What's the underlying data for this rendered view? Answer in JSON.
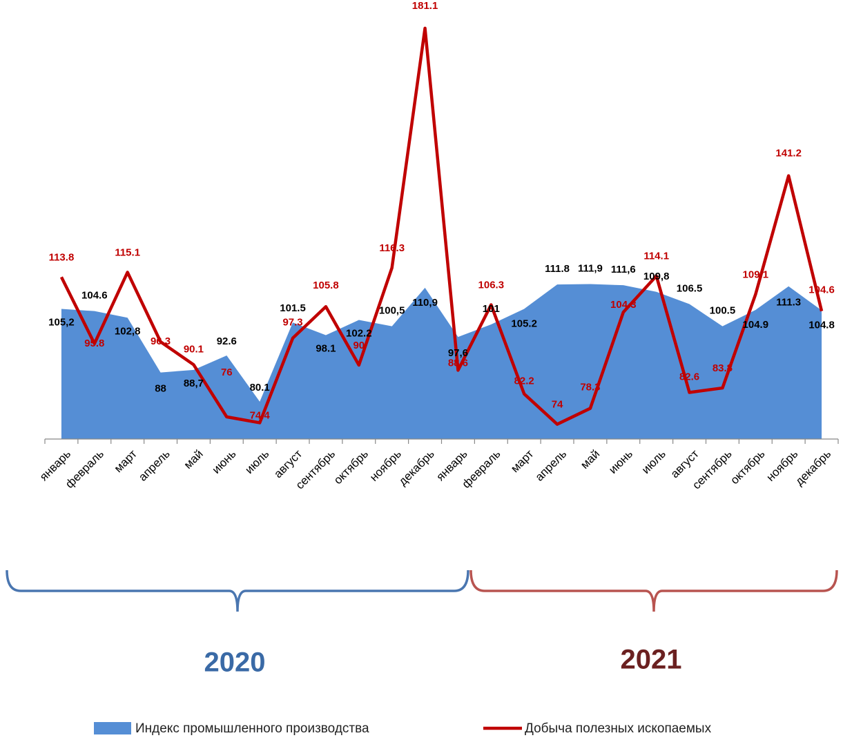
{
  "chart_data": {
    "type": "area+line",
    "title": "",
    "categories": [
      "январь",
      "февраль",
      "март",
      "апрель",
      "май",
      "июнь",
      "июль",
      "август",
      "сентябрь",
      "октябрь",
      "ноябрь",
      "декабрь",
      "январь",
      "февраль",
      "март",
      "апрель",
      "май",
      "июнь",
      "июль",
      "август",
      "сентябрь",
      "октябрь",
      "ноябрь",
      "декабрь"
    ],
    "ylim": [
      70,
      185
    ],
    "grid": false,
    "legend": "bottom",
    "year_groups": [
      {
        "label": "2020",
        "from": 0,
        "to": 11,
        "color": "#4a76b0"
      },
      {
        "label": "2021",
        "from": 12,
        "to": 23,
        "color": "#b85450"
      }
    ],
    "series": [
      {
        "name": "Индекс промышленного производства",
        "kind": "area",
        "color": "#558ed5",
        "values": [
          105.2,
          104.6,
          102.8,
          88,
          88.7,
          92.6,
          80.1,
          101.5,
          98.1,
          102.2,
          100.5,
          110.9,
          97.6,
          101,
          105.2,
          111.8,
          111.9,
          111.6,
          109.8,
          106.5,
          100.5,
          104.9,
          111.3,
          104.8
        ],
        "labels": [
          "105,2",
          "104.6",
          "102,8",
          "88",
          "88,7",
          "92.6",
          "80.1",
          "101.5",
          "98.1",
          "102.2",
          "100,5",
          "110,9",
          "97,6",
          "101",
          "105.2",
          "111.8",
          "111,9",
          "111,6",
          "109,8",
          "106.5",
          "100.5",
          "104.9",
          "111.3",
          "104.8"
        ]
      },
      {
        "name": "Добыча полезных ископаемых",
        "kind": "line",
        "color": "#c00000",
        "values": [
          113.8,
          95.8,
          115.1,
          96.3,
          90.1,
          76,
          74.4,
          97.3,
          105.8,
          90,
          116.3,
          181.1,
          88.6,
          106.3,
          82.2,
          74,
          78.3,
          104.3,
          114.1,
          82.6,
          83.8,
          109.1,
          141.2,
          104.6
        ],
        "labels": [
          "113.8",
          "95.8",
          "115.1",
          "96.3",
          "90.1",
          "76",
          "74.4",
          "97.3",
          "105.8",
          "90",
          "116.3",
          "181.1",
          "88.6",
          "106.3",
          "82.2",
          "74",
          "78.3",
          "104.3",
          "114.1",
          "82.6",
          "83.8",
          "109.1",
          "141.2",
          "104.6"
        ]
      }
    ]
  }
}
